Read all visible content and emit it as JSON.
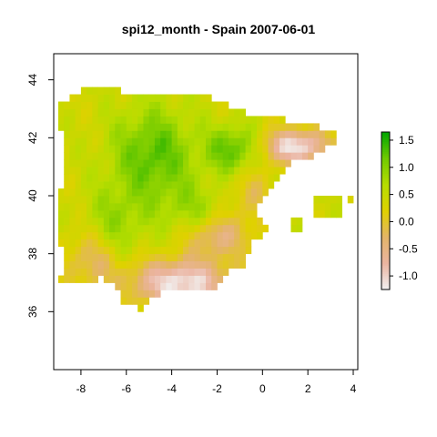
{
  "title": "spi12_month - Spain 2007-06-01",
  "map": {
    "variable": "spi12_month",
    "region": "Spain",
    "date": "2007-06-01",
    "xlim": [
      -9.2,
      4.2
    ],
    "ylim": [
      34.0,
      44.9
    ],
    "x_ticks": [
      -8,
      -6,
      -4,
      -2,
      0,
      2,
      4
    ],
    "x_tick_labels": [
      "-8",
      "-6",
      "-4",
      "-2",
      "0",
      "2",
      "4"
    ],
    "y_ticks": [
      36,
      38,
      40,
      42,
      44
    ],
    "y_tick_labels": [
      "36",
      "38",
      "40",
      "42",
      "44"
    ],
    "cell_size_deg": 0.25
  },
  "colorbar": {
    "range": [
      -1.25,
      1.65
    ],
    "ticks": [
      -1.0,
      -0.5,
      0.0,
      0.5,
      1.0,
      1.5
    ],
    "tick_labels": [
      "-1.0",
      "-0.5",
      "0.0",
      "0.5",
      "1.0",
      "1.5"
    ],
    "colors": [
      "#f2f2f2",
      "#ebb4a1",
      "#e3b468",
      "#e0d100",
      "#b6dd00",
      "#71ca00",
      "#00a600"
    ]
  }
}
